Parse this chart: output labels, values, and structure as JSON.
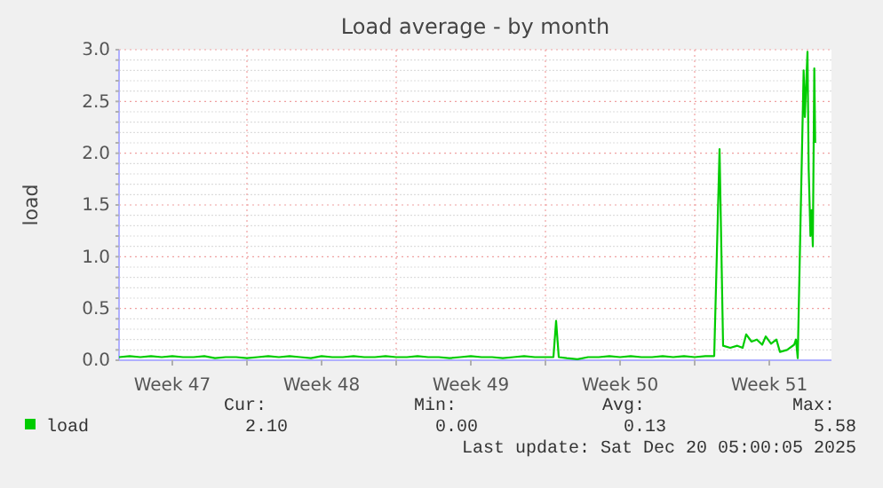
{
  "chart_data": {
    "type": "line",
    "title": "Load average - by month",
    "ylabel": "load",
    "x": [
      "2025-11-18T00:00",
      "2025-11-18T12:00",
      "2025-11-19T00:00",
      "2025-11-19T12:00",
      "2025-11-20T00:00",
      "2025-11-20T12:00",
      "2025-11-21T00:00",
      "2025-11-21T12:00",
      "2025-11-22T00:00",
      "2025-11-22T12:00",
      "2025-11-23T00:00",
      "2025-11-23T12:00",
      "2025-11-24T00:00",
      "2025-11-24T12:00",
      "2025-11-25T00:00",
      "2025-11-25T12:00",
      "2025-11-26T00:00",
      "2025-11-26T12:00",
      "2025-11-27T00:00",
      "2025-11-27T12:00",
      "2025-11-28T00:00",
      "2025-11-28T12:00",
      "2025-11-29T00:00",
      "2025-11-29T12:00",
      "2025-11-30T00:00",
      "2025-11-30T12:00",
      "2025-12-01T00:00",
      "2025-12-01T12:00",
      "2025-12-02T00:00",
      "2025-12-02T12:00",
      "2025-12-03T00:00",
      "2025-12-03T12:00",
      "2025-12-04T00:00",
      "2025-12-04T12:00",
      "2025-12-05T00:00",
      "2025-12-05T12:00",
      "2025-12-06T00:00",
      "2025-12-06T12:00",
      "2025-12-07T00:00",
      "2025-12-07T12:00",
      "2025-12-08T00:00",
      "2025-12-08T09:00",
      "2025-12-08T12:00",
      "2025-12-08T15:00",
      "2025-12-09T00:00",
      "2025-12-09T12:00",
      "2025-12-10T00:00",
      "2025-12-10T12:00",
      "2025-12-11T00:00",
      "2025-12-11T12:00",
      "2025-12-12T00:00",
      "2025-12-12T12:00",
      "2025-12-13T00:00",
      "2025-12-13T12:00",
      "2025-12-14T00:00",
      "2025-12-14T12:00",
      "2025-12-15T00:00",
      "2025-12-15T12:00",
      "2025-12-15T22:00",
      "2025-12-16T04:00",
      "2025-12-16T08:00",
      "2025-12-16T16:00",
      "2025-12-17T00:00",
      "2025-12-17T06:00",
      "2025-12-17T10:00",
      "2025-12-17T16:00",
      "2025-12-17T22:00",
      "2025-12-18T04:00",
      "2025-12-18T08:00",
      "2025-12-18T14:00",
      "2025-12-18T20:00",
      "2025-12-19T00:00",
      "2025-12-19T08:00",
      "2025-12-19T16:00",
      "2025-12-19T18:00",
      "2025-12-19T20:00",
      "2025-12-20T02:40",
      "2025-12-20T04:00",
      "2025-12-20T07:00",
      "2025-12-20T08:20",
      "2025-12-20T10:20",
      "2025-12-20T11:40",
      "2025-12-20T13:00",
      "2025-12-20T14:40",
      "2025-12-20T15:40"
    ],
    "series": [
      {
        "name": "load",
        "color": "#00cc00",
        "values": [
          0.03,
          0.04,
          0.03,
          0.04,
          0.03,
          0.04,
          0.03,
          0.03,
          0.04,
          0.02,
          0.03,
          0.03,
          0.02,
          0.03,
          0.04,
          0.03,
          0.04,
          0.03,
          0.02,
          0.04,
          0.03,
          0.03,
          0.04,
          0.03,
          0.03,
          0.04,
          0.03,
          0.03,
          0.04,
          0.03,
          0.03,
          0.02,
          0.03,
          0.04,
          0.03,
          0.03,
          0.02,
          0.03,
          0.04,
          0.03,
          0.03,
          0.03,
          0.38,
          0.03,
          0.02,
          0.01,
          0.03,
          0.03,
          0.04,
          0.03,
          0.04,
          0.03,
          0.03,
          0.04,
          0.03,
          0.04,
          0.03,
          0.04,
          0.04,
          2.04,
          0.14,
          0.12,
          0.14,
          0.12,
          0.25,
          0.18,
          0.2,
          0.15,
          0.23,
          0.16,
          0.2,
          0.08,
          0.1,
          0.15,
          0.2,
          0.02,
          2.8,
          2.35,
          2.98,
          1.85,
          1.2,
          1.45,
          1.1,
          2.82,
          2.1
        ]
      }
    ],
    "xlim": [
      "2025-11-18T00:00",
      "2025-12-21T10:00"
    ],
    "xticks": [
      {
        "value": "2025-11-20T12:00",
        "label": "Week 47"
      },
      {
        "value": "2025-11-24T00:00",
        "label": null
      },
      {
        "value": "2025-11-27T12:00",
        "label": "Week 48"
      },
      {
        "value": "2025-12-01T00:00",
        "label": null
      },
      {
        "value": "2025-12-04T12:00",
        "label": "Week 49"
      },
      {
        "value": "2025-12-08T00:00",
        "label": null
      },
      {
        "value": "2025-12-11T12:00",
        "label": "Week 50"
      },
      {
        "value": "2025-12-15T00:00",
        "label": null
      },
      {
        "value": "2025-12-18T12:00",
        "label": "Week 51"
      }
    ],
    "ylim": [
      0,
      3
    ],
    "yticks": [
      {
        "value": 0,
        "label": "0.0"
      },
      {
        "value": 0.1,
        "label": null
      },
      {
        "value": 0.2,
        "label": null
      },
      {
        "value": 0.3,
        "label": null
      },
      {
        "value": 0.4,
        "label": null
      },
      {
        "value": 0.5,
        "label": "0.5"
      },
      {
        "value": 0.6,
        "label": null
      },
      {
        "value": 0.7,
        "label": null
      },
      {
        "value": 0.8,
        "label": null
      },
      {
        "value": 0.9,
        "label": null
      },
      {
        "value": 1,
        "label": "1.0"
      },
      {
        "value": 1.1,
        "label": null
      },
      {
        "value": 1.2,
        "label": null
      },
      {
        "value": 1.3,
        "label": null
      },
      {
        "value": 1.4,
        "label": null
      },
      {
        "value": 1.5,
        "label": "1.5"
      },
      {
        "value": 1.6,
        "label": null
      },
      {
        "value": 1.7,
        "label": null
      },
      {
        "value": 1.8,
        "label": null
      },
      {
        "value": 1.9,
        "label": null
      },
      {
        "value": 2,
        "label": "2.0"
      },
      {
        "value": 2.1,
        "label": null
      },
      {
        "value": 2.2,
        "label": null
      },
      {
        "value": 2.3,
        "label": null
      },
      {
        "value": 2.4,
        "label": null
      },
      {
        "value": 2.5,
        "label": "2.5"
      },
      {
        "value": 2.6,
        "label": null
      },
      {
        "value": 2.7,
        "label": null
      },
      {
        "value": 2.8,
        "label": null
      },
      {
        "value": 2.9,
        "label": null
      },
      {
        "value": 3,
        "label": "3.0"
      }
    ],
    "grid": true,
    "legend": "bottom left",
    "line_style": "solid",
    "annotations": [
      "Cur:",
      "2.10",
      "Min:",
      "0.00",
      "Avg:",
      "0.13",
      "Max:",
      "5.58",
      "Last update: Sat Dec 20 05:00:05 2025"
    ]
  }
}
